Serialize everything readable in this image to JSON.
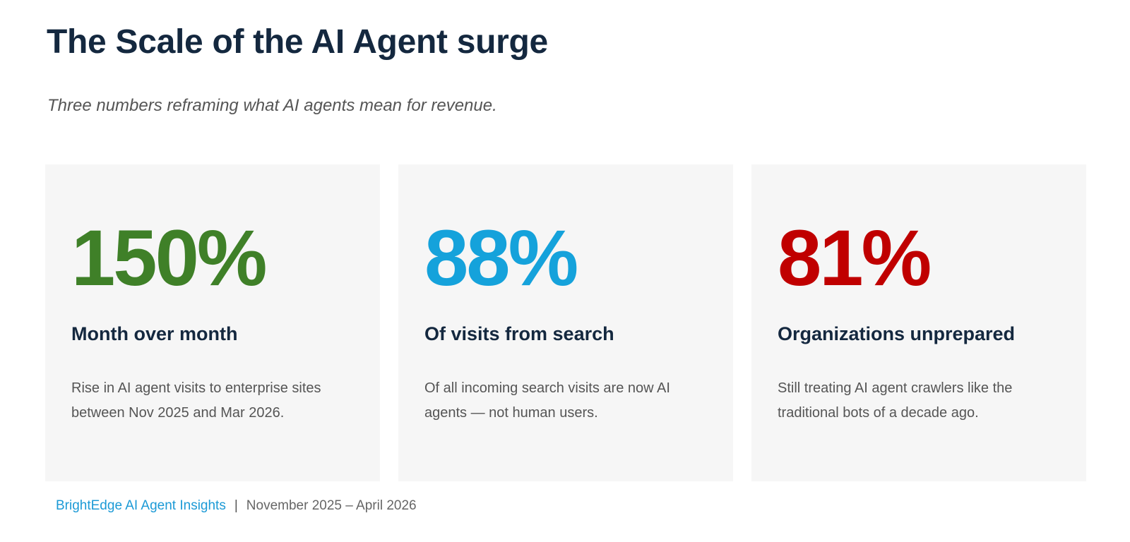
{
  "title": "The Scale of the AI Agent surge",
  "subtitle": "Three numbers reframing what AI agents mean for revenue.",
  "cards": [
    {
      "stat": "150%",
      "stat_color": "#3f8028",
      "heading": "Month over month",
      "description": "Rise in AI agent visits to enterprise sites between Nov 2025 and Mar 2026."
    },
    {
      "stat": "88%",
      "stat_color": "#15a2db",
      "heading": "Of visits from search",
      "description": "Of all incoming search visits are now AI agents — not human users."
    },
    {
      "stat": "81%",
      "stat_color": "#c00000",
      "heading": "Organizations unprepared",
      "description": "Still treating AI agent crawlers like the traditional bots of a decade ago."
    }
  ],
  "footer": {
    "brand": "BrightEdge AI Agent Insights",
    "separator": "|",
    "date_range": "November 2025 – April  2026"
  },
  "colors": {
    "title": "#14283f",
    "card_background": "#f6f6f6",
    "brand": "#1c9ad6"
  }
}
